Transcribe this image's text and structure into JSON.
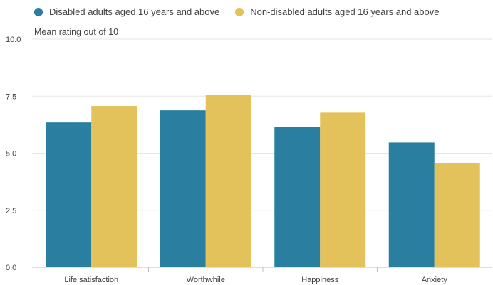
{
  "chart_data": {
    "type": "bar",
    "title": "",
    "ylabel": "Mean rating out of 10",
    "xlabel": "",
    "categories": [
      "Life satisfaction",
      "Worthwhile",
      "Happiness",
      "Anxiety"
    ],
    "series": [
      {
        "name": "Disabled adults aged 16 years and above",
        "color": "#2a7ea0",
        "values": [
          6.35,
          6.88,
          6.15,
          5.47
        ]
      },
      {
        "name": "Non-disabled adults aged 16 years and above",
        "color": "#e3c25b",
        "values": [
          7.07,
          7.55,
          6.78,
          4.57
        ]
      }
    ],
    "ylim": [
      0,
      10
    ],
    "yticks": [
      "0.0",
      "2.5",
      "5.0",
      "7.5",
      "10.0"
    ],
    "grid": true,
    "legend_position": "top-left"
  }
}
